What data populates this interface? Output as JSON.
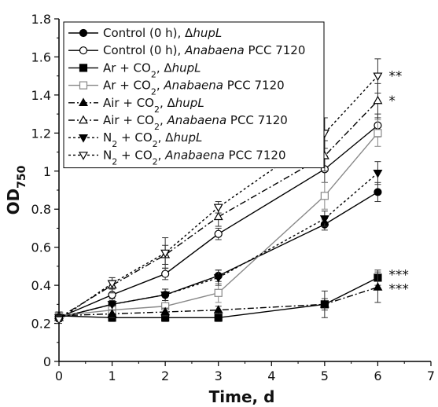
{
  "chart_data": {
    "type": "line",
    "xlabel": "Time, d",
    "ylabel": {
      "main": "OD",
      "sub": "750"
    },
    "xlim": [
      0,
      7
    ],
    "ylim": [
      0,
      1.8
    ],
    "xticks": [
      "0",
      "1",
      "2",
      "3",
      "4",
      "5",
      "6",
      "7"
    ],
    "yticks": [
      "0",
      "0.2",
      "0.4",
      "0.6",
      "0.8",
      "1",
      "1.2",
      "1.4",
      "1.6",
      "1.8"
    ],
    "grid": false,
    "legend_position": "top-left",
    "series": [
      {
        "legend": {
          "a": "Control (0 h), Δ",
          "i": "hupL",
          "b": ""
        },
        "x": [
          0,
          1,
          2,
          3,
          5,
          6
        ],
        "y": [
          0.23,
          0.3,
          0.35,
          0.45,
          0.72,
          0.89
        ],
        "err": [
          0.02,
          0.03,
          0.03,
          0.03,
          0.03,
          0.05
        ],
        "color": "#000000",
        "dash": "",
        "marker": "circle",
        "fill": "#000000"
      },
      {
        "legend": {
          "a": "Control (0 h), ",
          "i": "Anabaena",
          "b": " PCC 7120"
        },
        "x": [
          0,
          1,
          2,
          3,
          5,
          6
        ],
        "y": [
          0.23,
          0.35,
          0.46,
          0.67,
          1.01,
          1.24
        ],
        "err": [
          0.02,
          0.03,
          0.03,
          0.03,
          0.07,
          0.06
        ],
        "color": "#000000",
        "dash": "",
        "marker": "circle",
        "fill": "#ffffff"
      },
      {
        "legend": {
          "a": "Ar + CO",
          "sub": "2",
          "c": ", Δ",
          "i": "hupL",
          "b": ""
        },
        "x": [
          0,
          1,
          2,
          3,
          5,
          6
        ],
        "y": [
          0.24,
          0.23,
          0.23,
          0.23,
          0.3,
          0.44
        ],
        "err": [
          0.02,
          0.02,
          0.02,
          0.02,
          0.03,
          0.04
        ],
        "color": "#000000",
        "dash": "",
        "marker": "square",
        "fill": "#000000"
      },
      {
        "legend": {
          "a": "Ar + CO",
          "sub": "2",
          "c": ", ",
          "i": "Anabaena",
          "b": " PCC 7120"
        },
        "x": [
          0,
          1,
          2,
          3,
          5,
          6
        ],
        "y": [
          0.24,
          0.27,
          0.29,
          0.36,
          0.87,
          1.2
        ],
        "err": [
          0.02,
          0.02,
          0.03,
          0.05,
          0.07,
          0.07
        ],
        "color": "#888888",
        "dash": "",
        "marker": "square",
        "fill": "#ffffff"
      },
      {
        "legend": {
          "a": "Air + CO",
          "sub": "2",
          "c": ", Δ",
          "i": "hupL",
          "b": ""
        },
        "x": [
          0,
          1,
          2,
          3,
          5,
          6
        ],
        "y": [
          0.24,
          0.25,
          0.26,
          0.27,
          0.3,
          0.39
        ],
        "err": [
          0.02,
          0.02,
          0.02,
          0.02,
          0.07,
          0.08
        ],
        "color": "#000000",
        "dash": "8,3,2,3",
        "marker": "triangle-up",
        "fill": "#000000"
      },
      {
        "legend": {
          "a": "Air + CO",
          "sub": "2",
          "c": ", ",
          "i": "Anabaena",
          "b": " PCC 7120"
        },
        "x": [
          0,
          1,
          2,
          3,
          5,
          6
        ],
        "y": [
          0.23,
          0.4,
          0.56,
          0.76,
          1.08,
          1.37
        ],
        "err": [
          0.02,
          0.04,
          0.05,
          0.05,
          0.08,
          0.09
        ],
        "color": "#000000",
        "dash": "8,3,2,3",
        "marker": "triangle-up",
        "fill": "#ffffff"
      },
      {
        "legend": {
          "a": "N",
          "sub": "2",
          "c": " + CO",
          "sub2": "2",
          "d": ", Δ",
          "i": "hupL",
          "b": ""
        },
        "x": [
          0,
          1,
          2,
          3,
          5,
          6
        ],
        "y": [
          0.23,
          0.3,
          0.35,
          0.44,
          0.75,
          0.99
        ],
        "err": [
          0.02,
          0.03,
          0.03,
          0.04,
          0.04,
          0.06
        ],
        "color": "#000000",
        "dash": "3,3",
        "marker": "triangle-down",
        "fill": "#000000"
      },
      {
        "legend": {
          "a": "N",
          "sub": "2",
          "c": " + CO",
          "sub2": "2",
          "d": ", ",
          "i": "Anabaena",
          "b": " PCC 7120"
        },
        "x": [
          0,
          1,
          2,
          3,
          5,
          6
        ],
        "y": [
          0.22,
          0.41,
          0.57,
          0.81,
          1.2,
          1.5
        ],
        "err": [
          0.02,
          0.03,
          0.08,
          0.03,
          0.08,
          0.09
        ],
        "color": "#000000",
        "dash": "3,3",
        "marker": "triangle-down",
        "fill": "#ffffff"
      }
    ],
    "annotations": [
      {
        "text": "**",
        "x": 6,
        "y": 1.5
      },
      {
        "text": "*",
        "x": 6,
        "y": 1.37
      },
      {
        "text": "***",
        "x": 6,
        "y": 0.44
      },
      {
        "text": "***",
        "x": 6,
        "y": 0.39
      }
    ]
  }
}
